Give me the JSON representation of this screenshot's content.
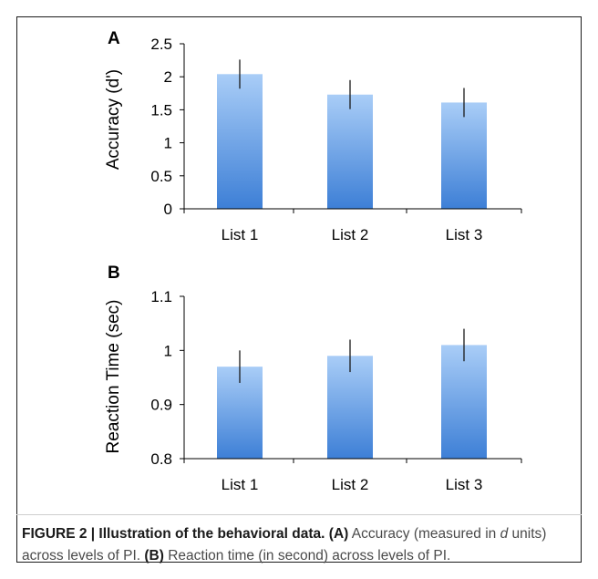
{
  "figure": {
    "caption": {
      "label": "FIGURE 2 | Illustration of the behavioral data.",
      "part_a_tag": "(A)",
      "part_a_text_1": "Accuracy (measured in",
      "part_a_italic": "d",
      "part_a_text_2": "units) across levels of PI.",
      "part_b_tag": "(B)",
      "part_b_text": "Reaction time (in second) across levels of PI."
    }
  },
  "colors": {
    "bar_top": "#a9cdf7",
    "bar_bottom": "#3d7fd6",
    "axis": "#000000"
  },
  "chart_data": [
    {
      "panel": "A",
      "type": "bar",
      "ylabel": "Accuracy (d')",
      "categories": [
        "List 1",
        "List 2",
        "List 3"
      ],
      "values": [
        2.04,
        1.73,
        1.61
      ],
      "error": [
        0.22,
        0.22,
        0.22
      ],
      "ylim": [
        0,
        2.5
      ],
      "yticks": [
        0,
        0.5,
        1,
        1.5,
        2,
        2.5
      ],
      "ytick_labels": [
        "0",
        "0.5",
        "1",
        "1.5",
        "2",
        "2.5"
      ]
    },
    {
      "panel": "B",
      "type": "bar",
      "ylabel": "Reaction Time (sec)",
      "categories": [
        "List 1",
        "List 2",
        "List 3"
      ],
      "values": [
        0.97,
        0.99,
        1.01
      ],
      "error": [
        0.03,
        0.03,
        0.03
      ],
      "ylim": [
        0.8,
        1.1
      ],
      "yticks": [
        0.8,
        0.9,
        1,
        1.1
      ],
      "ytick_labels": [
        "0.8",
        "0.9",
        "1",
        "1.1"
      ]
    }
  ]
}
